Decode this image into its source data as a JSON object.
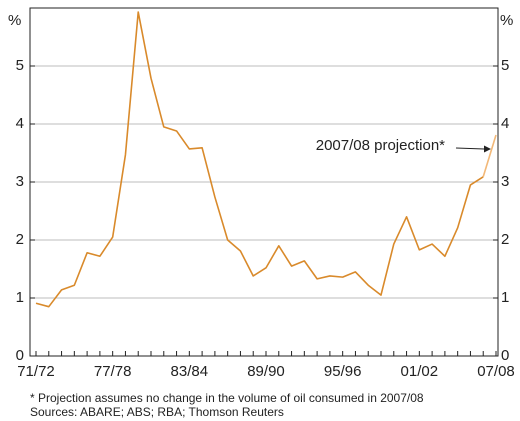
{
  "chart_data": {
    "type": "line",
    "categories": [
      "71/72",
      null,
      null,
      null,
      null,
      null,
      "77/78",
      null,
      null,
      null,
      null,
      null,
      "83/84",
      null,
      null,
      null,
      null,
      null,
      "89/90",
      null,
      null,
      null,
      null,
      null,
      "95/96",
      null,
      null,
      null,
      null,
      null,
      "01/02",
      null,
      null,
      null,
      null,
      null,
      "07/08"
    ],
    "series": [
      {
        "color": "#d98a2b",
        "projection_color": "#f2b878",
        "values": [
          0.91,
          0.85,
          1.14,
          1.22,
          1.78,
          1.72,
          2.05,
          3.47,
          5.93,
          4.79,
          3.95,
          3.88,
          3.57,
          3.59,
          2.74,
          2.0,
          1.81,
          1.38,
          1.52,
          1.9,
          1.55,
          1.64,
          1.33,
          1.38,
          1.36,
          1.45,
          1.22,
          1.05,
          1.93,
          2.4,
          1.83,
          1.93,
          1.72,
          2.21,
          2.95,
          3.09,
          3.81
        ]
      }
    ],
    "ylabel": "%",
    "y2label": "%",
    "ylim": [
      0,
      6
    ],
    "yticks": [
      0,
      1,
      2,
      3,
      4,
      5
    ],
    "y2lim": [
      0,
      6
    ],
    "y2ticks": [
      0,
      1,
      2,
      3,
      4,
      5
    ],
    "grid": true,
    "annotation": "2007/08 projection*",
    "footnotes": [
      "*   Projection assumes no change in the volume of oil consumed in 2007/08",
      "Sources: ABARE; ABS; RBA; Thomson Reuters"
    ]
  }
}
